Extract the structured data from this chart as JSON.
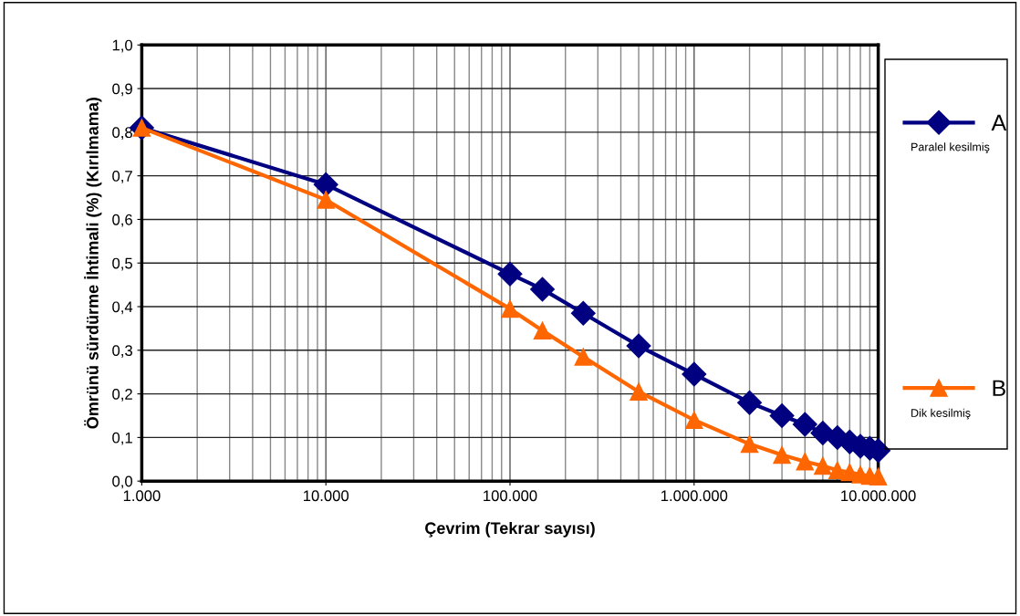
{
  "chart_data": {
    "type": "line",
    "xlabel": "Çevrim (Tekrar sayısı)",
    "ylabel": "Ömrünü sürdürme İhtimali (%) (Kırılmama)",
    "x": [
      1000,
      10000,
      100000,
      150000,
      250000,
      500000,
      1000000,
      2000000,
      3000000,
      4000000,
      5000000,
      6000000,
      7000000,
      8000000,
      9000000,
      10000000
    ],
    "series": [
      {
        "name": "A",
        "color": "#000080",
        "marker": "diamond",
        "values": [
          0.81,
          0.68,
          0.475,
          0.44,
          0.385,
          0.31,
          0.245,
          0.18,
          0.15,
          0.13,
          0.11,
          0.1,
          0.09,
          0.08,
          0.075,
          0.07
        ]
      },
      {
        "name": "B",
        "color": "#ff6600",
        "marker": "triangle",
        "values": [
          0.81,
          0.645,
          0.395,
          0.345,
          0.285,
          0.205,
          0.14,
          0.085,
          0.06,
          0.045,
          0.035,
          0.025,
          0.02,
          0.015,
          0.012,
          0.01
        ]
      }
    ],
    "log": "x",
    "xlim": [
      1000,
      10000000
    ],
    "xticks": [
      {
        "value": 1000,
        "label": "1.000"
      },
      {
        "value": 10000,
        "label": "10.000"
      },
      {
        "value": 100000,
        "label": "100.000"
      },
      {
        "value": 1000000,
        "label": "1.000.000"
      },
      {
        "value": 10000000,
        "label": "10.000.000"
      }
    ],
    "ylim": [
      0,
      1
    ],
    "yticks": [
      {
        "value": 0,
        "label": "0,0"
      },
      {
        "value": 0.1,
        "label": "0,1"
      },
      {
        "value": 0.2,
        "label": "0,2"
      },
      {
        "value": 0.3,
        "label": "0,3"
      },
      {
        "value": 0.4,
        "label": "0,4"
      },
      {
        "value": 0.5,
        "label": "0,5"
      },
      {
        "value": 0.6,
        "label": "0,6"
      },
      {
        "value": 0.7,
        "label": "0,7"
      },
      {
        "value": 0.8,
        "label": "0,8"
      },
      {
        "value": 0.9,
        "label": "0,9"
      },
      {
        "value": 1,
        "label": "1,0"
      }
    ],
    "grid": true,
    "legend": "right",
    "line_style": "solid",
    "annotations": [
      "Paralel kesilmiş",
      "Dik kesilmiş"
    ]
  }
}
